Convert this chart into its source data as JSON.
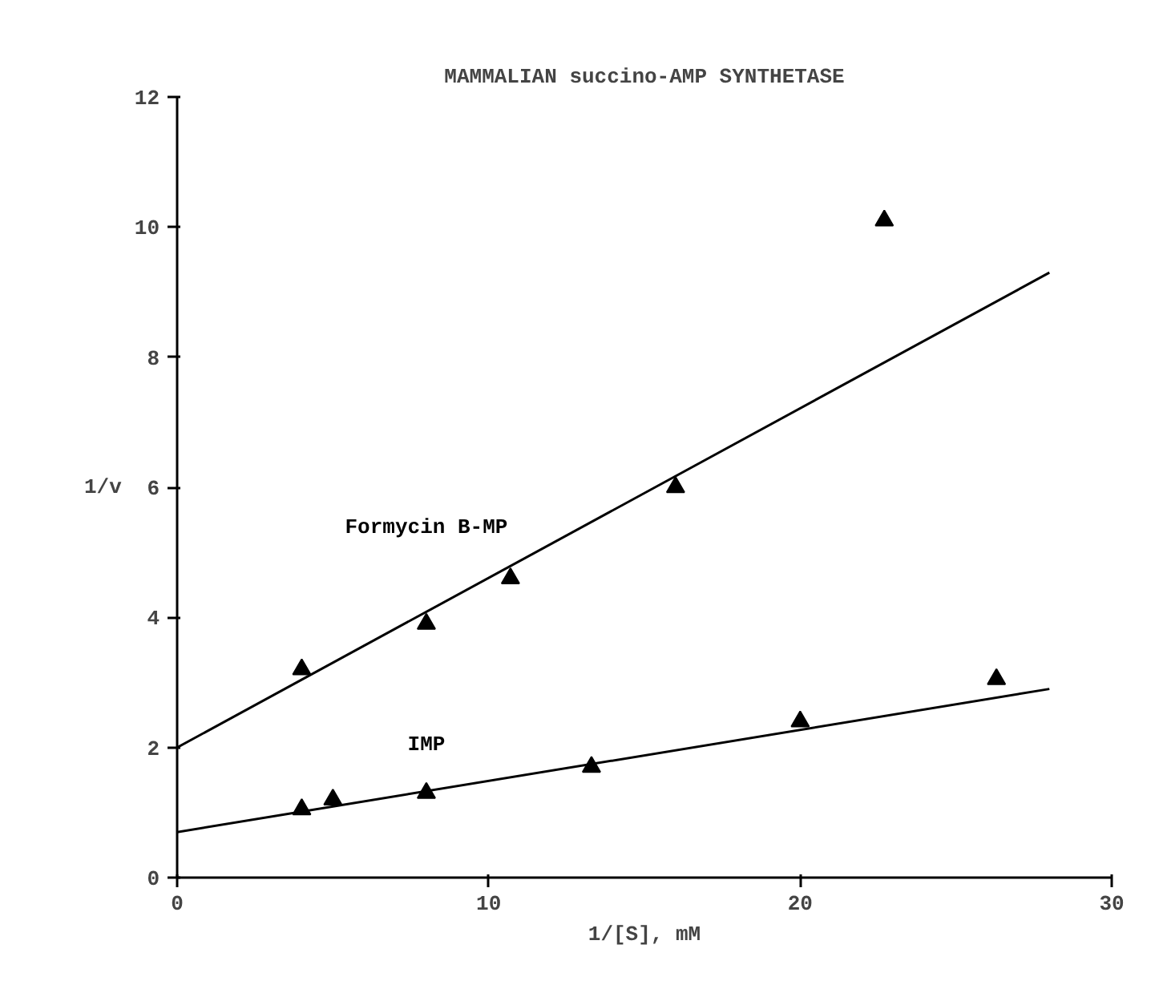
{
  "chart_data": {
    "type": "scatter",
    "title": "MAMMALIAN succino-AMP SYNTHETASE",
    "xlabel": "1/[S], mM",
    "ylabel": "1/v",
    "xlim": [
      0,
      30
    ],
    "xticks": [
      0,
      10,
      20,
      30
    ],
    "ylim": [
      0,
      12
    ],
    "yticks": [
      0,
      2,
      4,
      6,
      8,
      10,
      12
    ],
    "marker": "triangle",
    "series": [
      {
        "name": "Formycin B-MP",
        "color": "#000000",
        "x": [
          4,
          8,
          10.7,
          16,
          22.7
        ],
        "values": [
          3.2,
          3.9,
          4.6,
          6.0,
          10.1
        ]
      },
      {
        "type": "line",
        "marker": "none",
        "color": "#000000",
        "x": [
          0,
          28
        ],
        "values": [
          2.0,
          9.3
        ]
      },
      {
        "name": "IMP",
        "color": "#000000",
        "x": [
          4,
          5,
          8,
          13.3,
          20,
          26.3
        ],
        "values": [
          1.05,
          1.2,
          1.3,
          1.7,
          2.4,
          3.05
        ]
      },
      {
        "type": "line",
        "marker": "none",
        "color": "#000000",
        "x": [
          0,
          28
        ],
        "values": [
          0.7,
          2.9
        ]
      }
    ]
  }
}
